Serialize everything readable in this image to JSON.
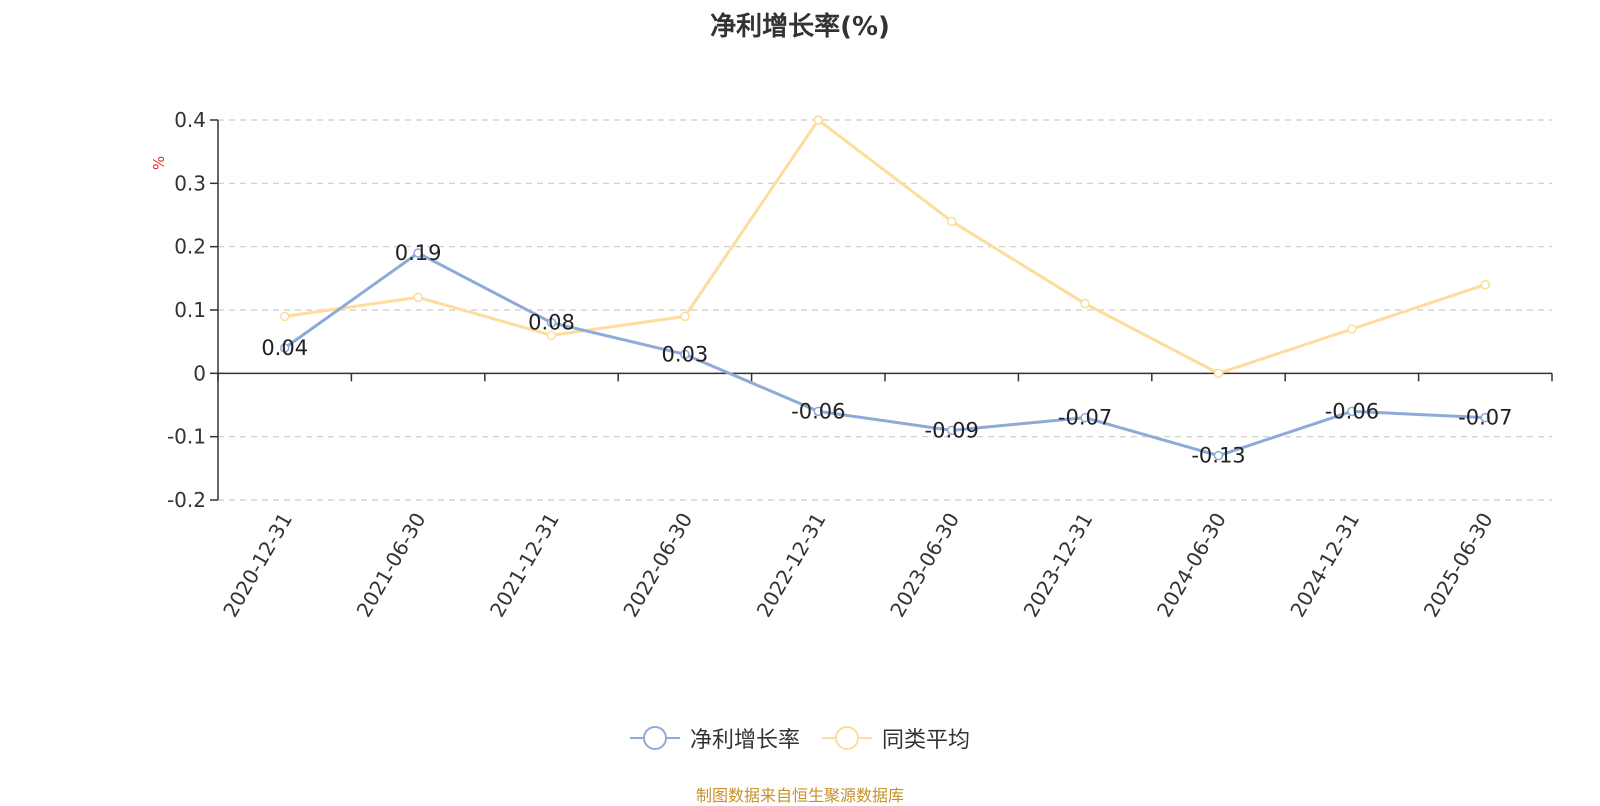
{
  "title": "净利增长率(%)",
  "source_note": "制图数据来自恒生聚源数据库",
  "colors": {
    "series_1": "#8eaad8",
    "series_2": "#fddc9c",
    "axis": "#333333",
    "grid": "#cccccc",
    "ylabel": "#e0302b",
    "source": "#c8902a"
  },
  "chart_data": {
    "type": "line",
    "title": "净利增长率(%)",
    "xlabel": "",
    "ylabel": "%",
    "ylim": [
      -0.2,
      0.4
    ],
    "yticks": [
      -0.2,
      -0.1,
      0,
      0.1,
      0.2,
      0.3,
      0.4
    ],
    "ytick_labels": [
      "-0.2",
      "-0.1",
      "0",
      "0.1",
      "0.2",
      "0.3",
      "0.4"
    ],
    "grid": true,
    "legend_position": "bottom-center",
    "categories": [
      "2020-12-31",
      "2021-06-30",
      "2021-12-31",
      "2022-06-30",
      "2022-12-31",
      "2023-06-30",
      "2023-12-31",
      "2024-06-30",
      "2024-12-31",
      "2025-06-30"
    ],
    "series": [
      {
        "name": "净利增长率",
        "values": [
          0.04,
          0.19,
          0.08,
          0.03,
          -0.06,
          -0.09,
          -0.07,
          -0.13,
          -0.06,
          -0.07
        ],
        "data_labels": [
          "0.04",
          "0.19",
          "0.08",
          "0.03",
          "-0.06",
          "-0.09",
          "-0.07",
          "-0.13",
          "-0.06",
          "-0.07"
        ]
      },
      {
        "name": "同类平均",
        "values": [
          0.09,
          0.12,
          0.06,
          0.09,
          0.4,
          0.24,
          0.11,
          0.0,
          0.07,
          0.14
        ]
      }
    ]
  }
}
